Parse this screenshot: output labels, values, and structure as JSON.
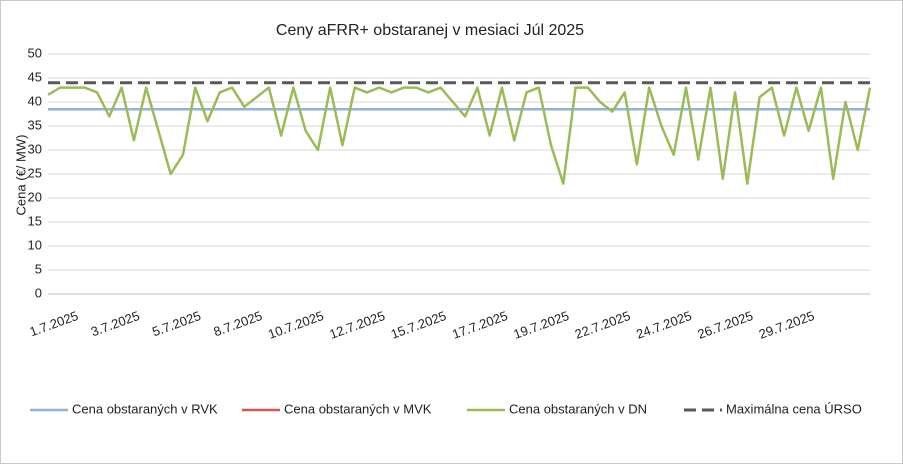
{
  "chart_data": {
    "type": "line",
    "title": "Ceny aFRR+ obstaranej v mesiaci Júl 2025",
    "y_label": "Cena (€/ MW)",
    "categories": [
      "1.7.2025",
      null,
      null,
      null,
      null,
      "3.7.2025",
      null,
      null,
      null,
      null,
      "5.7.2025",
      null,
      null,
      null,
      null,
      "8.7.2025",
      null,
      null,
      null,
      null,
      "10.7.2025",
      null,
      null,
      null,
      null,
      "12.7.2025",
      null,
      null,
      null,
      null,
      "15.7.2025",
      null,
      null,
      null,
      null,
      "17.7.2025",
      null,
      null,
      null,
      null,
      "19.7.2025",
      null,
      null,
      null,
      null,
      "22.7.2025",
      null,
      null,
      null,
      null,
      "24.7.2025",
      null,
      null,
      null,
      null,
      "26.7.2025",
      null,
      null,
      null,
      null,
      "29.7.2025",
      null,
      null,
      null,
      null,
      null,
      null,
      null
    ],
    "series": [
      {
        "name": "Cena obstaraných v RVK",
        "color": "#8fb3de",
        "dashed": false,
        "values": [
          38.5,
          38.5,
          38.5,
          38.5,
          38.5,
          38.5,
          38.5,
          38.5,
          38.5,
          38.5,
          38.5,
          38.5,
          38.5,
          38.5,
          38.5,
          38.5,
          38.5,
          38.5,
          38.5,
          38.5,
          38.5,
          38.5,
          38.5,
          38.5,
          38.5,
          38.5,
          38.5,
          38.5,
          38.5,
          38.5,
          38.5,
          38.5,
          38.5,
          38.5,
          38.5,
          38.5,
          38.5,
          38.5,
          38.5,
          38.5,
          38.5,
          38.5,
          38.5,
          38.5,
          38.5,
          38.5,
          38.5,
          38.5,
          38.5,
          38.5,
          38.5,
          38.5,
          38.5,
          38.5,
          38.5,
          38.5,
          38.5,
          38.5,
          38.5,
          38.5,
          38.5,
          38.5,
          38.5,
          38.5,
          38.5,
          38.5,
          38.5,
          38.5
        ]
      },
      {
        "name": "Cena obstaraných v MVK",
        "color": "#d9534f",
        "dashed": false,
        "values": [
          null,
          null,
          null,
          null,
          null,
          null,
          null,
          null,
          null,
          null,
          null,
          null,
          null,
          null,
          null,
          null,
          null,
          null,
          null,
          null,
          null,
          null,
          null,
          null,
          null,
          null,
          null,
          null,
          null,
          null,
          null,
          null,
          null,
          null,
          null,
          null,
          null,
          null,
          null,
          null,
          null,
          null,
          null,
          null,
          null,
          null,
          null,
          null,
          null,
          null,
          null,
          null,
          null,
          null,
          null,
          null,
          null,
          null,
          null,
          null,
          null,
          null,
          null,
          null,
          null,
          null,
          null,
          null
        ]
      },
      {
        "name": "Cena obstaraných v DN",
        "color": "#9bbb59",
        "dashed": false,
        "values": [
          41.5,
          43,
          43,
          43,
          42,
          37,
          43,
          32,
          43,
          34,
          25,
          29,
          43,
          36,
          42,
          43,
          39,
          41,
          43,
          33,
          43,
          34,
          30,
          43,
          31,
          43,
          42,
          43,
          42,
          43,
          43,
          42,
          43,
          40,
          37,
          43,
          33,
          43,
          32,
          42,
          43,
          31,
          23,
          43,
          43,
          40,
          38,
          42,
          27,
          43,
          35,
          29,
          43,
          28,
          43,
          24,
          42,
          23,
          41,
          43,
          33,
          43,
          34,
          43,
          24,
          40,
          30,
          43
        ]
      },
      {
        "name": "Maximálna cena ÚRSO",
        "color": "#595959",
        "dashed": true,
        "values": [
          44,
          44,
          44,
          44,
          44,
          44,
          44,
          44,
          44,
          44,
          44,
          44,
          44,
          44,
          44,
          44,
          44,
          44,
          44,
          44,
          44,
          44,
          44,
          44,
          44,
          44,
          44,
          44,
          44,
          44,
          44,
          44,
          44,
          44,
          44,
          44,
          44,
          44,
          44,
          44,
          44,
          44,
          44,
          44,
          44,
          44,
          44,
          44,
          44,
          44,
          44,
          44,
          44,
          44,
          44,
          44,
          44,
          44,
          44,
          44,
          44,
          44,
          44,
          44,
          44,
          44,
          44,
          44
        ]
      }
    ],
    "ylim": [
      0,
      50
    ],
    "yticks": [
      0,
      5,
      10,
      15,
      20,
      25,
      30,
      35,
      40,
      45,
      50
    ],
    "grid": true,
    "legend": "bottom"
  }
}
